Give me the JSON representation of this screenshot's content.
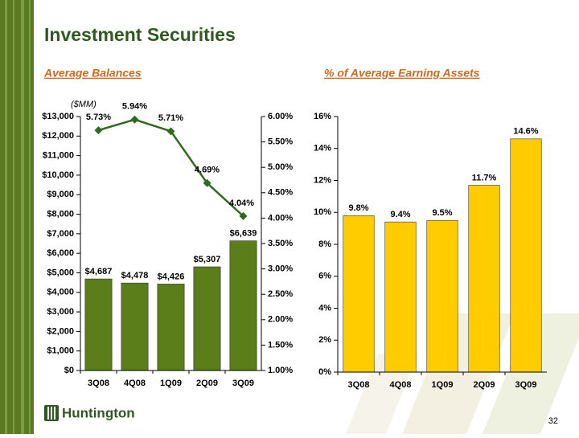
{
  "title": "Investment Securities",
  "logo": "Huntington",
  "page_number": "32",
  "chart_data": [
    {
      "type": "bar",
      "title": "Average Balances",
      "annotation": "($MM)",
      "categories": [
        "3Q08",
        "4Q08",
        "1Q09",
        "2Q09",
        "3Q09"
      ],
      "series": [
        {
          "type": "bar",
          "color": "#5b7d1a",
          "values": [
            4687,
            4478,
            4426,
            5307,
            6639
          ],
          "value_labels": [
            "$4,687",
            "$4,478",
            "$4,426",
            "$5,307",
            "$6,639"
          ]
        },
        {
          "type": "line",
          "axis": "y2",
          "color": "#2f6b1c",
          "values": [
            5.73,
            5.94,
            5.71,
            4.69,
            4.04
          ],
          "value_labels": [
            "5.73%",
            "5.94%",
            "5.71%",
            "4.69%",
            "4.04%"
          ]
        }
      ],
      "ylim": [
        0,
        13000
      ],
      "yticks": [
        {
          "value": 0,
          "label": "$0"
        },
        {
          "value": 1000,
          "label": "$1,000"
        },
        {
          "value": 2000,
          "label": "$2,000"
        },
        {
          "value": 3000,
          "label": "$3,000"
        },
        {
          "value": 4000,
          "label": "$4,000"
        },
        {
          "value": 5000,
          "label": "$5,000"
        },
        {
          "value": 6000,
          "label": "$6,000"
        },
        {
          "value": 7000,
          "label": "$7,000"
        },
        {
          "value": 8000,
          "label": "$8,000"
        },
        {
          "value": 9000,
          "label": "$9,000"
        },
        {
          "value": 10000,
          "label": "$10,000"
        },
        {
          "value": 11000,
          "label": "$11,000"
        },
        {
          "value": 12000,
          "label": "$12,000"
        },
        {
          "value": 13000,
          "label": "$13,000"
        }
      ],
      "y2lim": [
        1,
        6
      ],
      "y2ticks": [
        {
          "value": 1,
          "label": "1.00%"
        },
        {
          "value": 1.5,
          "label": "1.50%"
        },
        {
          "value": 2,
          "label": "2.00%"
        },
        {
          "value": 2.5,
          "label": "2.50%"
        },
        {
          "value": 3,
          "label": "3.00%"
        },
        {
          "value": 3.5,
          "label": "3.50%"
        },
        {
          "value": 4,
          "label": "4.00%"
        },
        {
          "value": 4.5,
          "label": "4.50%"
        },
        {
          "value": 5,
          "label": "5.00%"
        },
        {
          "value": 5.5,
          "label": "5.50%"
        },
        {
          "value": 6,
          "label": "6.00%"
        }
      ]
    },
    {
      "type": "bar",
      "title": "% of Average Earning Assets",
      "categories": [
        "3Q08",
        "4Q08",
        "1Q09",
        "2Q09",
        "3Q09"
      ],
      "series": [
        {
          "type": "bar",
          "color": "#ffcc00",
          "values": [
            9.8,
            9.4,
            9.5,
            11.7,
            14.6
          ],
          "value_labels": [
            "9.8%",
            "9.4%",
            "9.5%",
            "11.7%",
            "14.6%"
          ]
        }
      ],
      "ylim": [
        0,
        16
      ],
      "yticks": [
        {
          "value": 0,
          "label": "0%"
        },
        {
          "value": 2,
          "label": "2%"
        },
        {
          "value": 4,
          "label": "4%"
        },
        {
          "value": 6,
          "label": "6%"
        },
        {
          "value": 8,
          "label": "8%"
        },
        {
          "value": 10,
          "label": "10%"
        },
        {
          "value": 12,
          "label": "12%"
        },
        {
          "value": 14,
          "label": "14%"
        },
        {
          "value": 16,
          "label": "16%"
        }
      ]
    }
  ]
}
